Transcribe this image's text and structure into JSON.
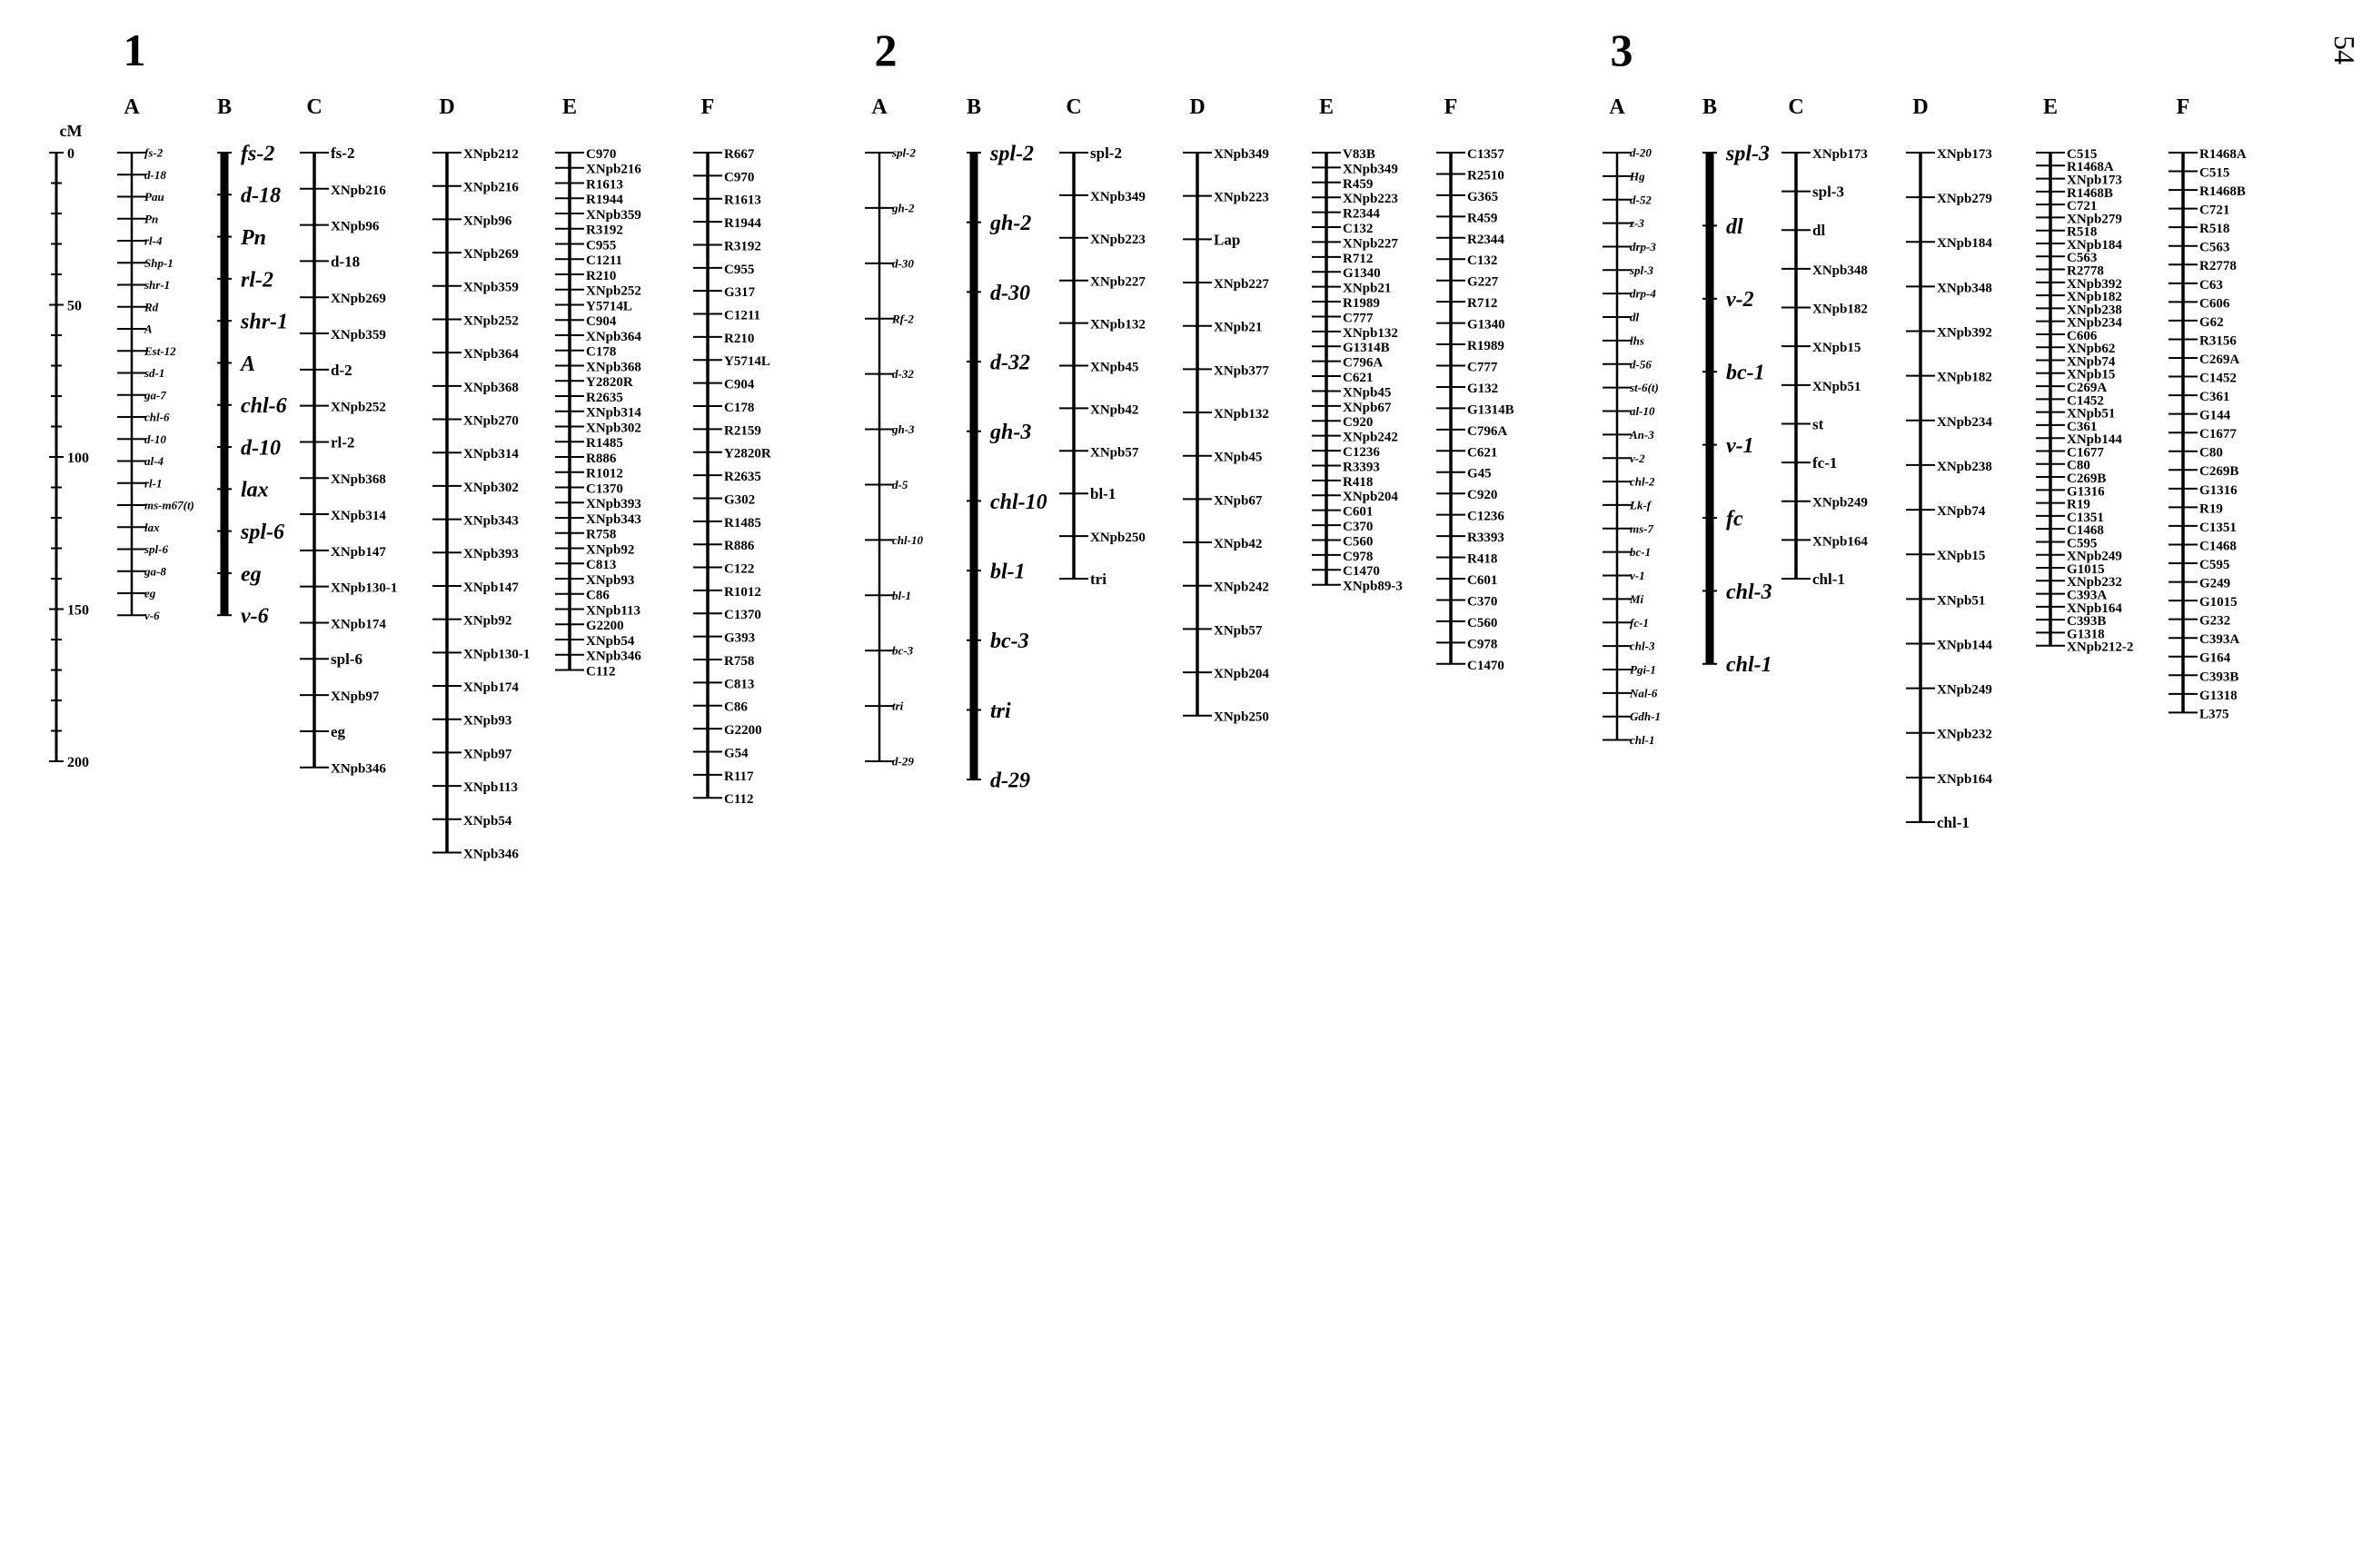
{
  "page_number": "54",
  "scale": {
    "unit": "cM",
    "ticks": [
      "0",
      "50",
      "100",
      "150",
      "200"
    ]
  },
  "groups": [
    {
      "number": "1",
      "maps": [
        {
          "letter": "A",
          "markers": [
            "fs-2",
            "d-18",
            "Pau",
            "Pn",
            "rl-4",
            "Shp-1",
            "shr-1",
            "Rd",
            "A",
            "Est-12",
            "sd-1",
            "ga-7",
            "chl-6",
            "d-10",
            "al-4",
            "rl-1",
            "ms-m67(t)",
            "lax",
            "spl-6",
            "ga-8",
            "eg",
            "v-6"
          ]
        },
        {
          "letter": "B",
          "markers": [
            "fs-2",
            "d-18",
            "Pn",
            "rl-2",
            "shr-1",
            "A",
            "chl-6",
            "d-10",
            "lax",
            "spl-6",
            "eg",
            "v-6"
          ]
        },
        {
          "letter": "C",
          "markers": [
            "fs-2",
            "XNpb216",
            "XNpb96",
            "d-18",
            "XNpb269",
            "XNpb359",
            "d-2",
            "XNpb252",
            "rl-2",
            "XNpb368",
            "XNpb314",
            "XNpb147",
            "XNpb130-1",
            "XNpb174",
            "spl-6",
            "XNpb97",
            "eg",
            "XNpb346"
          ]
        },
        {
          "letter": "D",
          "markers": [
            "XNpb212",
            "XNpb216",
            "XNpb96",
            "XNpb269",
            "XNpb359",
            "XNpb252",
            "XNpb364",
            "XNpb368",
            "XNpb270",
            "XNpb314",
            "XNpb302",
            "XNpb343",
            "XNpb393",
            "XNpb147",
            "XNpb92",
            "XNpb130-1",
            "XNpb174",
            "XNpb93",
            "XNpb97",
            "XNpb113",
            "XNpb54",
            "XNpb346"
          ]
        },
        {
          "letter": "E",
          "markers": [
            "C970",
            "XNpb216",
            "R1613",
            "R1944",
            "XNpb359",
            "R3192",
            "C955",
            "C1211",
            "R210",
            "XNpb252",
            "Y5714L",
            "C904",
            "XNpb364",
            "C178",
            "XNpb368",
            "Y2820R",
            "R2635",
            "XNpb314",
            "XNpb302",
            "R1485",
            "R886",
            "R1012",
            "C1370",
            "XNpb393",
            "XNpb343",
            "R758",
            "XNpb92",
            "C813",
            "XNpb93",
            "C86",
            "XNpb113",
            "G2200",
            "XNpb54",
            "XNpb346",
            "C112"
          ]
        },
        {
          "letter": "F",
          "markers": [
            "R667",
            "C970",
            "R1613",
            "R1944",
            "R3192",
            "C955",
            "G317",
            "C1211",
            "R210",
            "Y5714L",
            "C904",
            "C178",
            "R2159",
            "Y2820R",
            "R2635",
            "G302",
            "R1485",
            "R886",
            "C122",
            "R1012",
            "C1370",
            "G393",
            "R758",
            "C813",
            "C86",
            "G2200",
            "G54",
            "R117",
            "C112"
          ]
        }
      ]
    },
    {
      "number": "2",
      "maps": [
        {
          "letter": "A",
          "markers": [
            "spl-2",
            "gh-2",
            "d-30",
            "Rf-2",
            "d-32",
            "gh-3",
            "d-5",
            "chl-10",
            "bl-1",
            "bc-3",
            "tri",
            "d-29"
          ]
        },
        {
          "letter": "B",
          "markers": [
            "spl-2",
            "gh-2",
            "d-30",
            "d-32",
            "gh-3",
            "chl-10",
            "bl-1",
            "bc-3",
            "tri",
            "d-29"
          ]
        },
        {
          "letter": "C",
          "markers": [
            "spl-2",
            "XNpb349",
            "XNpb223",
            "XNpb227",
            "XNpb132",
            "XNpb45",
            "XNpb42",
            "XNpb57",
            "bl-1",
            "XNpb250",
            "tri"
          ]
        },
        {
          "letter": "D",
          "markers": [
            "XNpb349",
            "XNpb223",
            "Lap",
            "XNpb227",
            "XNpb21",
            "XNpb377",
            "XNpb132",
            "XNpb45",
            "XNpb67",
            "XNpb42",
            "XNpb242",
            "XNpb57",
            "XNpb204",
            "XNpb250"
          ]
        },
        {
          "letter": "E",
          "markers": [
            "V83B",
            "XNpb349",
            "R459",
            "XNpb223",
            "R2344",
            "C132",
            "XNpb227",
            "R712",
            "G1340",
            "XNpb21",
            "R1989",
            "C777",
            "XNpb132",
            "G1314B",
            "C796A",
            "C621",
            "XNpb45",
            "XNpb67",
            "C920",
            "XNpb242",
            "C1236",
            "R3393",
            "R418",
            "XNpb204",
            "C601",
            "C370",
            "C560",
            "C978",
            "C1470",
            "XNpb89-3"
          ]
        },
        {
          "letter": "F",
          "markers": [
            "C1357",
            "R2510",
            "G365",
            "R459",
            "R2344",
            "C132",
            "G227",
            "R712",
            "G1340",
            "R1989",
            "C777",
            "G132",
            "G1314B",
            "C796A",
            "C621",
            "G45",
            "C920",
            "C1236",
            "R3393",
            "R418",
            "C601",
            "C370",
            "C560",
            "C978",
            "C1470"
          ]
        }
      ]
    },
    {
      "number": "3",
      "maps": [
        {
          "letter": "A",
          "markers": [
            "d-20",
            "Hg",
            "d-52",
            "z-3",
            "drp-3",
            "spl-3",
            "drp-4",
            "dl",
            "lhs",
            "d-56",
            "st-6(t)",
            "al-10",
            "An-3",
            "v-2",
            "chl-2",
            "Lk-f",
            "ms-7",
            "bc-1",
            "v-1",
            "Mi",
            "fc-1",
            "chl-3",
            "Pgi-1",
            "Nal-6",
            "Gdh-1",
            "chl-1"
          ]
        },
        {
          "letter": "B",
          "markers": [
            "spl-3",
            "dl",
            "v-2",
            "bc-1",
            "v-1",
            "fc",
            "chl-3",
            "chl-1"
          ]
        },
        {
          "letter": "C",
          "markers": [
            "XNpb173",
            "spl-3",
            "dl",
            "XNpb348",
            "XNpb182",
            "XNpb15",
            "XNpb51",
            "st",
            "fc-1",
            "XNpb249",
            "XNpb164",
            "chl-1"
          ]
        },
        {
          "letter": "D",
          "markers": [
            "XNpb173",
            "XNpb279",
            "XNpb184",
            "XNpb348",
            "XNpb392",
            "XNpb182",
            "XNpb234",
            "XNpb238",
            "XNpb74",
            "XNpb15",
            "XNpb51",
            "XNpb144",
            "XNpb249",
            "XNpb232",
            "XNpb164",
            "chl-1"
          ]
        },
        {
          "letter": "E",
          "markers": [
            "C515",
            "R1468A",
            "XNpb173",
            "R1468B",
            "C721",
            "XNpb279",
            "R518",
            "XNpb184",
            "C563",
            "R2778",
            "XNpb392",
            "XNpb182",
            "XNpb238",
            "XNpb234",
            "C606",
            "XNpb62",
            "XNpb74",
            "XNpb15",
            "C269A",
            "C1452",
            "XNpb51",
            "C361",
            "XNpb144",
            "C1677",
            "C80",
            "C269B",
            "G1316",
            "R19",
            "C1351",
            "C1468",
            "C595",
            "XNpb249",
            "G1015",
            "XNpb232",
            "C393A",
            "XNpb164",
            "C393B",
            "G1318",
            "XNpb212-2"
          ]
        },
        {
          "letter": "F",
          "markers": [
            "R1468A",
            "C515",
            "R1468B",
            "C721",
            "R518",
            "C563",
            "R2778",
            "C63",
            "C606",
            "G62",
            "R3156",
            "C269A",
            "C1452",
            "C361",
            "G144",
            "C1677",
            "C80",
            "C269B",
            "G1316",
            "R19",
            "C1351",
            "C1468",
            "C595",
            "G249",
            "G1015",
            "G232",
            "C393A",
            "G164",
            "C393B",
            "G1318",
            "L375"
          ]
        }
      ]
    }
  ]
}
